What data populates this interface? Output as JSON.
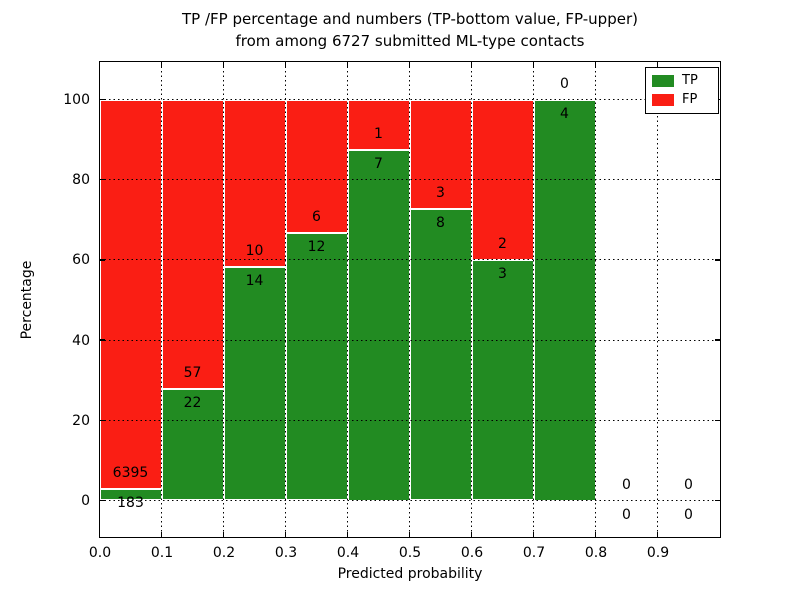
{
  "chart_data": {
    "type": "bar",
    "stacked": true,
    "title_lines": [
      "TP /FP percentage and numbers (TP-bottom value, FP-upper)",
      "from among 6727 submitted ML-type contacts"
    ],
    "xlabel": "Predicted probability",
    "ylabel": "Percentage",
    "categories": [
      "0.0-0.1",
      "0.1-0.2",
      "0.2-0.3",
      "0.3-0.4",
      "0.4-0.5",
      "0.5-0.6",
      "0.6-0.7",
      "0.7-0.8",
      "0.8-0.9",
      "0.9-1.0"
    ],
    "series": [
      {
        "name": "TP",
        "color": "#228b22",
        "values": [
          183,
          22,
          14,
          12,
          7,
          8,
          3,
          4,
          0,
          0
        ]
      },
      {
        "name": "FP",
        "color": "#fa1e14",
        "values": [
          6395,
          57,
          10,
          6,
          1,
          3,
          2,
          0,
          0,
          0
        ]
      }
    ],
    "tp_percent": [
      2.8,
      27.8,
      58.3,
      66.7,
      87.5,
      72.7,
      60.0,
      100.0,
      0.0,
      0.0
    ],
    "x_tick_labels": [
      "0.0",
      "0.1",
      "0.2",
      "0.3",
      "0.4",
      "0.5",
      "0.6",
      "0.7",
      "0.8",
      "0.9"
    ],
    "y_tick_labels": [
      "0",
      "20",
      "40",
      "60",
      "80",
      "100"
    ],
    "y_tick_values": [
      0,
      20,
      40,
      60,
      80,
      100
    ],
    "xlim": [
      0.0,
      1.0
    ],
    "ylim": [
      -9,
      109.5
    ],
    "grid": "dotted",
    "grid_color": "#000000",
    "bar_edge_color": "#ffffff",
    "legend": {
      "position": "upper right",
      "entries": [
        "TP",
        "FP"
      ]
    }
  }
}
